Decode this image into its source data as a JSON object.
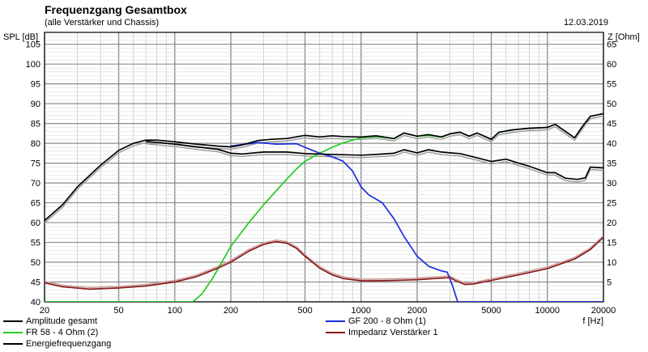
{
  "header": {
    "title": "Frequenzgang Gesamtbox",
    "subtitle": "(alle Verstärker und Chassis)",
    "date": "12.03.2019",
    "y_left_label": "SPL [dB]",
    "y_right_label": "Z [Ohm]",
    "x_label": "f [Hz]"
  },
  "legend": [
    {
      "label": "Amplitude gesamt",
      "color": "#000000"
    },
    {
      "label": "FR 58 - 4 Ohm (2)",
      "color": "#22cc22"
    },
    {
      "label": "Energiefrequenzgang",
      "color": "#000000"
    },
    {
      "label": "GF 200 - 8 Ohm (1)",
      "color": "#1a2ee0"
    },
    {
      "label": "Impedanz Verstärker 1",
      "color": "#8b1a1a"
    }
  ],
  "chart_data": {
    "type": "line",
    "title": "Frequenzgang Gesamtbox",
    "subtitle": "(alle Verstärker und Chassis)",
    "xlabel": "f [Hz]",
    "ylabel": "SPL [dB]",
    "y2label": "Z [Ohm]",
    "x_scale": "log",
    "xlim": [
      20,
      20000
    ],
    "ylim": [
      40,
      108
    ],
    "y2lim": [
      0,
      68
    ],
    "x_ticks": [
      20,
      50,
      100,
      200,
      500,
      1000,
      2000,
      5000,
      10000,
      20000
    ],
    "y_ticks": [
      40,
      45,
      50,
      55,
      60,
      65,
      70,
      75,
      80,
      85,
      90,
      95,
      100,
      105
    ],
    "y2_ticks": [
      5,
      10,
      15,
      20,
      25,
      30,
      35,
      40,
      45,
      50,
      55,
      60,
      65
    ],
    "grid": true,
    "series": [
      {
        "name": "Amplitude gesamt",
        "color": "#000000",
        "axis": "left",
        "points": [
          [
            20,
            60.5
          ],
          [
            25,
            64.5
          ],
          [
            30,
            69
          ],
          [
            40,
            74.5
          ],
          [
            50,
            78.2
          ],
          [
            60,
            80
          ],
          [
            70,
            80.8
          ],
          [
            80,
            80.8
          ],
          [
            100,
            80.4
          ],
          [
            130,
            79.8
          ],
          [
            170,
            79.3
          ],
          [
            200,
            79.1
          ],
          [
            230,
            79.6
          ],
          [
            280,
            80.7
          ],
          [
            330,
            81
          ],
          [
            400,
            81.2
          ],
          [
            500,
            82
          ],
          [
            600,
            81.6
          ],
          [
            700,
            81.9
          ],
          [
            800,
            81.7
          ],
          [
            1000,
            81.6
          ],
          [
            1200,
            81.9
          ],
          [
            1500,
            81.2
          ],
          [
            1700,
            82.6
          ],
          [
            2000,
            81.8
          ],
          [
            2300,
            82.2
          ],
          [
            2700,
            81.6
          ],
          [
            3000,
            82.4
          ],
          [
            3400,
            82.8
          ],
          [
            3800,
            81.8
          ],
          [
            4200,
            82.6
          ],
          [
            5000,
            81
          ],
          [
            5500,
            82.8
          ],
          [
            6500,
            83.4
          ],
          [
            8000,
            83.8
          ],
          [
            10000,
            84
          ],
          [
            11000,
            84.8
          ],
          [
            12500,
            83
          ],
          [
            14000,
            81.4
          ],
          [
            15500,
            84.4
          ],
          [
            17000,
            86.8
          ],
          [
            20000,
            87.5
          ]
        ]
      },
      {
        "name": "Energiefrequenzgang",
        "color": "#000000",
        "axis": "left",
        "points": [
          [
            70,
            80.5
          ],
          [
            100,
            79.8
          ],
          [
            130,
            79.1
          ],
          [
            170,
            78.5
          ],
          [
            200,
            77.5
          ],
          [
            230,
            77.3
          ],
          [
            300,
            77.8
          ],
          [
            400,
            77.8
          ],
          [
            500,
            77.4
          ],
          [
            700,
            77.2
          ],
          [
            1000,
            77
          ],
          [
            1200,
            77.2
          ],
          [
            1500,
            77.5
          ],
          [
            1700,
            78.4
          ],
          [
            2000,
            77.6
          ],
          [
            2300,
            78.4
          ],
          [
            2700,
            77.8
          ],
          [
            3000,
            77.6
          ],
          [
            3400,
            77.4
          ],
          [
            4000,
            76.6
          ],
          [
            5000,
            75.4
          ],
          [
            6000,
            76
          ],
          [
            7000,
            75
          ],
          [
            8000,
            74.2
          ],
          [
            10000,
            72.6
          ],
          [
            11000,
            72.6
          ],
          [
            12500,
            71.2
          ],
          [
            14500,
            70.9
          ],
          [
            16000,
            71.3
          ],
          [
            17000,
            74
          ],
          [
            20000,
            73.8
          ]
        ]
      },
      {
        "name": "FR 58 - 4 Ohm (2)",
        "color": "#22cc22",
        "axis": "left",
        "points": [
          [
            20,
            40
          ],
          [
            125,
            40
          ],
          [
            140,
            42
          ],
          [
            160,
            46
          ],
          [
            200,
            54
          ],
          [
            250,
            60
          ],
          [
            300,
            64.5
          ],
          [
            350,
            68
          ],
          [
            400,
            71
          ],
          [
            450,
            73.5
          ],
          [
            500,
            75.5
          ],
          [
            600,
            77.5
          ],
          [
            700,
            79
          ],
          [
            800,
            80.1
          ],
          [
            900,
            80.8
          ],
          [
            1000,
            81.4
          ],
          [
            1200,
            81.7
          ],
          [
            1500,
            81.2
          ],
          [
            1700,
            82.6
          ],
          [
            2000,
            81.8
          ],
          [
            2300,
            82
          ],
          [
            2700,
            81.6
          ],
          [
            3000,
            82.4
          ],
          [
            3400,
            82.8
          ],
          [
            3800,
            81.8
          ],
          [
            4200,
            82.6
          ],
          [
            5000,
            81
          ],
          [
            5500,
            82.8
          ],
          [
            6500,
            83.4
          ],
          [
            8000,
            83.8
          ],
          [
            10000,
            84
          ],
          [
            11000,
            84.8
          ],
          [
            12500,
            83
          ],
          [
            14000,
            81.4
          ],
          [
            15500,
            84.4
          ],
          [
            17000,
            86.8
          ],
          [
            20000,
            87.5
          ]
        ]
      },
      {
        "name": "GF 200 - 8 Ohm (1)",
        "color": "#1a2ee0",
        "axis": "left",
        "points": [
          [
            200,
            79.3
          ],
          [
            230,
            79.7
          ],
          [
            280,
            80.2
          ],
          [
            350,
            79.8
          ],
          [
            450,
            79.9
          ],
          [
            500,
            79
          ],
          [
            600,
            77.5
          ],
          [
            700,
            76.6
          ],
          [
            800,
            75.5
          ],
          [
            900,
            73
          ],
          [
            1000,
            69
          ],
          [
            1100,
            67
          ],
          [
            1300,
            65
          ],
          [
            1500,
            61
          ],
          [
            1700,
            56.5
          ],
          [
            2000,
            51.5
          ],
          [
            2300,
            49
          ],
          [
            2700,
            47.8
          ],
          [
            2900,
            47.5
          ],
          [
            3100,
            44
          ],
          [
            3300,
            40
          ],
          [
            20000,
            40
          ]
        ]
      },
      {
        "name": "Impedanz Verstärker 1",
        "color": "#8b1a1a",
        "axis": "right",
        "points": [
          [
            20,
            4.8
          ],
          [
            25,
            3.8
          ],
          [
            35,
            3.2
          ],
          [
            50,
            3.5
          ],
          [
            70,
            4
          ],
          [
            100,
            5
          ],
          [
            130,
            6.3
          ],
          [
            170,
            8.5
          ],
          [
            200,
            10
          ],
          [
            250,
            12.8
          ],
          [
            300,
            14.5
          ],
          [
            350,
            15.2
          ],
          [
            400,
            14.8
          ],
          [
            450,
            13.5
          ],
          [
            500,
            11.5
          ],
          [
            600,
            8.5
          ],
          [
            700,
            6.8
          ],
          [
            800,
            5.9
          ],
          [
            1000,
            5.3
          ],
          [
            1200,
            5.3
          ],
          [
            1500,
            5.4
          ],
          [
            2000,
            5.6
          ],
          [
            2500,
            5.9
          ],
          [
            3000,
            6.1
          ],
          [
            3200,
            5.4
          ],
          [
            3600,
            4.4
          ],
          [
            4000,
            4.5
          ],
          [
            5000,
            5.4
          ],
          [
            7000,
            6.8
          ],
          [
            10000,
            8.4
          ],
          [
            14000,
            10.8
          ],
          [
            17000,
            13.2
          ],
          [
            20000,
            16.3
          ]
        ]
      }
    ]
  }
}
